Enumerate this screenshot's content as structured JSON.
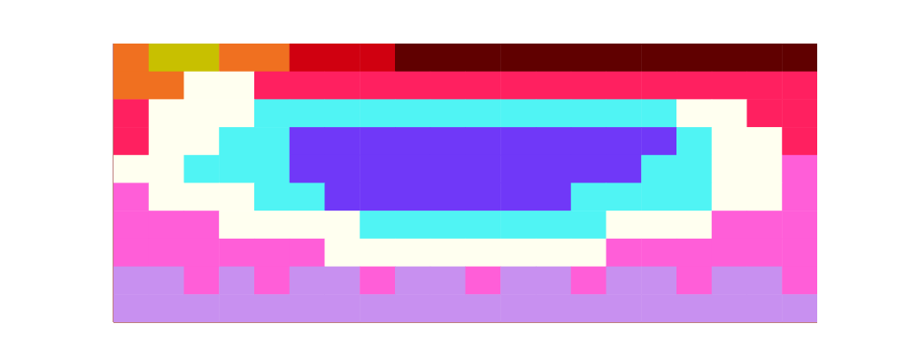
{
  "chart_data": {
    "type": "heatmap",
    "tick_labels": false,
    "cells": [
      [
        2,
        3,
        3,
        2,
        2,
        1,
        1,
        1,
        0,
        0,
        0,
        0,
        0,
        0,
        0,
        0,
        0,
        0,
        0,
        0
      ],
      [
        2,
        2,
        5,
        5,
        4,
        4,
        4,
        4,
        4,
        4,
        4,
        4,
        4,
        4,
        4,
        4,
        4,
        4,
        4,
        4
      ],
      [
        4,
        5,
        5,
        5,
        6,
        6,
        6,
        6,
        6,
        6,
        6,
        6,
        6,
        6,
        6,
        6,
        5,
        5,
        4,
        4
      ],
      [
        4,
        5,
        5,
        6,
        6,
        7,
        7,
        7,
        7,
        7,
        7,
        7,
        7,
        7,
        7,
        7,
        6,
        5,
        5,
        4
      ],
      [
        5,
        5,
        6,
        6,
        6,
        7,
        7,
        7,
        7,
        7,
        7,
        7,
        7,
        7,
        7,
        6,
        6,
        5,
        5,
        8
      ],
      [
        8,
        5,
        5,
        5,
        6,
        6,
        7,
        7,
        7,
        7,
        7,
        7,
        7,
        6,
        6,
        6,
        6,
        5,
        5,
        8
      ],
      [
        8,
        8,
        8,
        5,
        5,
        5,
        5,
        6,
        6,
        6,
        6,
        6,
        6,
        6,
        5,
        5,
        5,
        8,
        8,
        8
      ],
      [
        8,
        8,
        8,
        8,
        8,
        8,
        5,
        5,
        5,
        5,
        5,
        5,
        5,
        5,
        8,
        8,
        8,
        8,
        8,
        8
      ],
      [
        9,
        9,
        8,
        9,
        8,
        9,
        9,
        8,
        9,
        9,
        8,
        9,
        9,
        8,
        9,
        9,
        8,
        9,
        9,
        8
      ],
      [
        9,
        9,
        9,
        9,
        9,
        9,
        9,
        9,
        9,
        9,
        9,
        9,
        9,
        9,
        9,
        9,
        9,
        9,
        9,
        9
      ]
    ]
  }
}
